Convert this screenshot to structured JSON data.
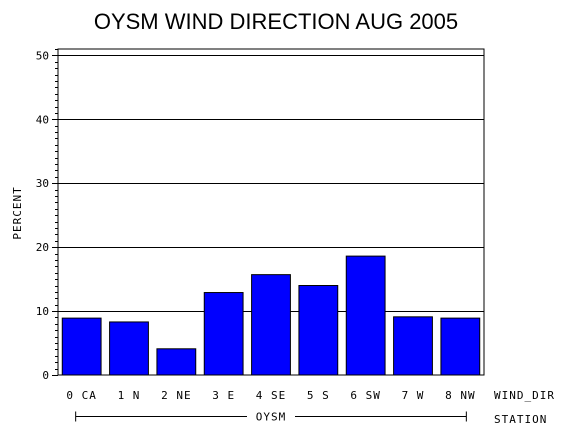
{
  "chart_data": {
    "type": "bar",
    "title": "OYSM WIND DIRECTION AUG 2005",
    "ylabel": "PERCENT",
    "xlabel": "WIND_DIR",
    "group_axis_label": "STATION",
    "group_label": "OYSM",
    "categories": [
      "0 CA",
      "1 N",
      "2 NE",
      "3 E",
      "4 SE",
      "5 S",
      "6 SW",
      "7 W",
      "8 NW"
    ],
    "values": [
      8.9,
      8.3,
      4.1,
      12.9,
      15.7,
      14.0,
      18.6,
      9.1,
      8.9
    ],
    "ylim": [
      0,
      51
    ],
    "yticks": [
      0,
      10,
      20,
      30,
      40,
      50
    ],
    "grid": true,
    "bar_color": "#0000ff"
  }
}
